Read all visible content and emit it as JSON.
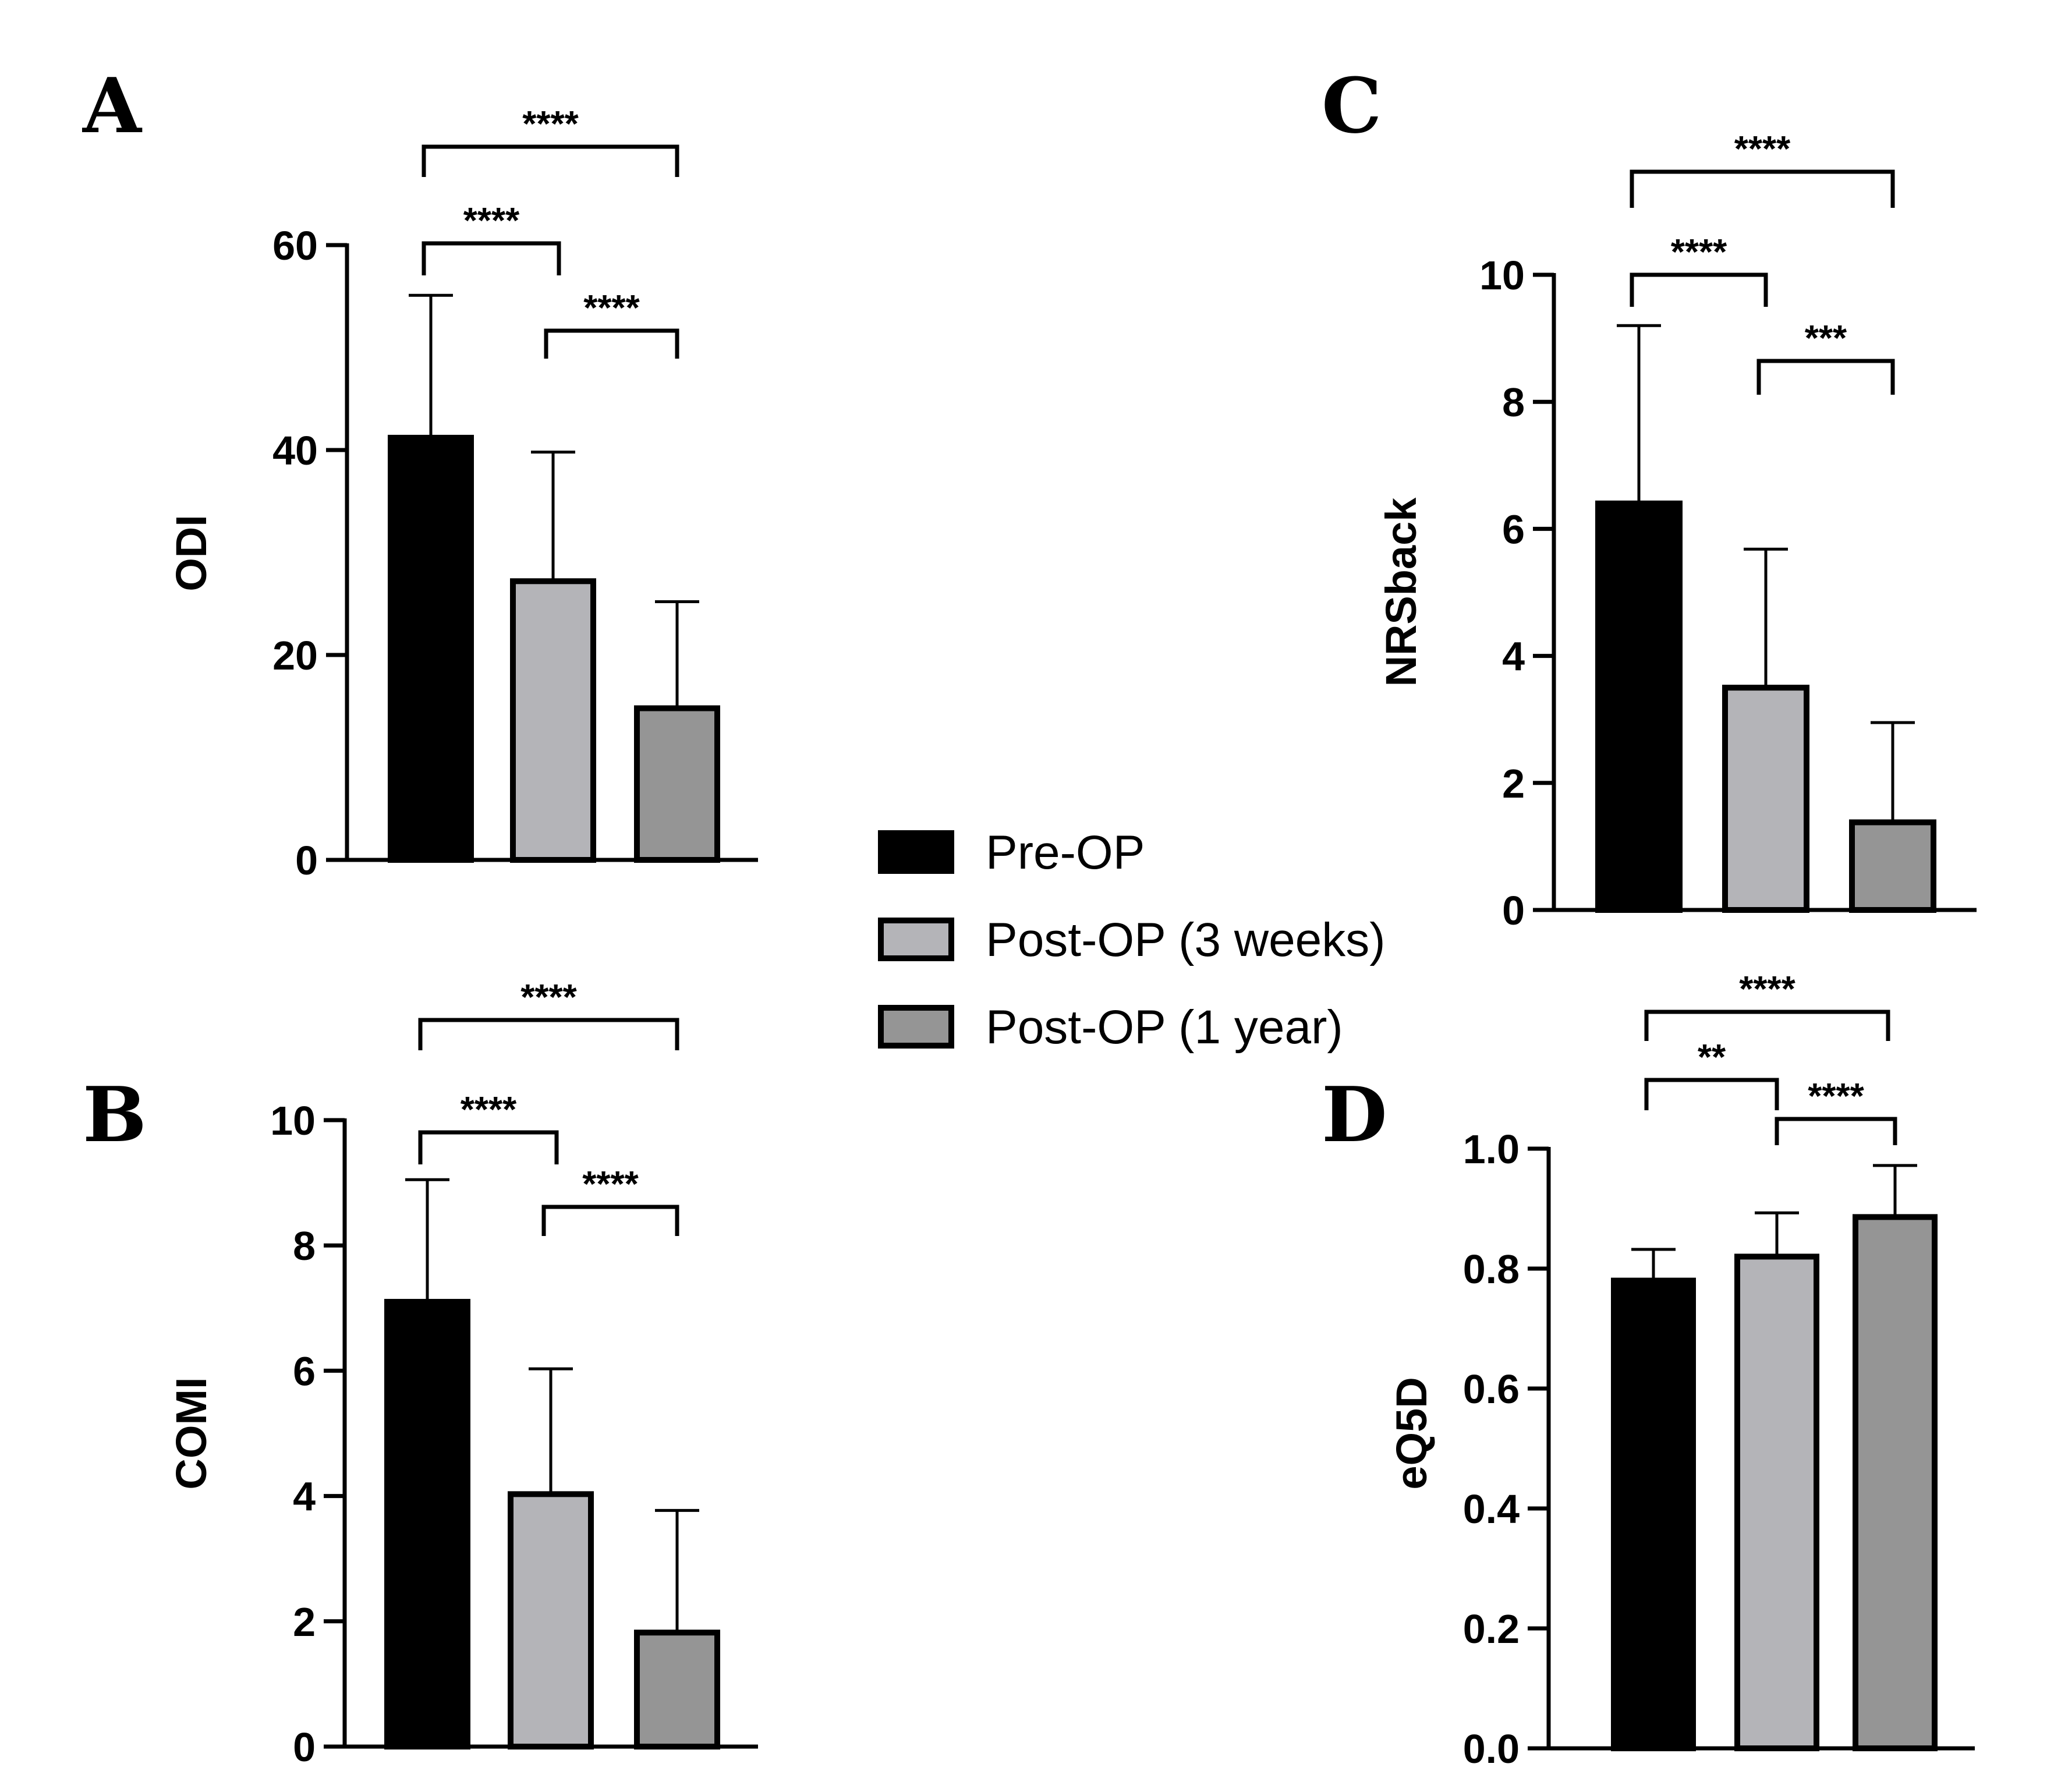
{
  "colors": {
    "pre": "#000000",
    "post3w": "#b4b4b8",
    "post1y": "#959595"
  },
  "legend": [
    {
      "label": "Pre-OP",
      "color": "#000000"
    },
    {
      "label": "Post-OP (3 weeks)",
      "color": "#b4b4b8"
    },
    {
      "label": "Post-OP (1 year)",
      "color": "#959595"
    }
  ],
  "chart_data": [
    {
      "panel": "A",
      "type": "bar",
      "ylabel": "ODI",
      "ylim": [
        0,
        60
      ],
      "yticks": [
        0,
        20,
        40,
        60
      ],
      "yticklabels": [
        "0",
        "20",
        "40",
        "60"
      ],
      "categories": [
        "Pre-OP",
        "Post-OP (3 weeks)",
        "Post-OP (1 year)"
      ],
      "values": [
        41.2,
        27.2,
        14.8
      ],
      "errors": [
        13.9,
        12.6,
        10.4
      ],
      "significance": [
        {
          "from": 0,
          "to": 2,
          "label": "****"
        },
        {
          "from": 0,
          "to": 1,
          "label": "****"
        },
        {
          "from": 1,
          "to": 2,
          "label": "****"
        }
      ]
    },
    {
      "panel": "B",
      "type": "bar",
      "ylabel": "COMI",
      "ylim": [
        0,
        10
      ],
      "yticks": [
        0,
        2,
        4,
        6,
        8,
        10
      ],
      "yticklabels": [
        "0",
        "2",
        "4",
        "6",
        "8",
        "10"
      ],
      "categories": [
        "Pre-OP",
        "Post-OP (3 weeks)",
        "Post-OP (1 year)"
      ],
      "values": [
        7.1,
        4.03,
        1.82
      ],
      "errors": [
        1.95,
        2.0,
        1.95
      ],
      "significance": [
        {
          "from": 0,
          "to": 2,
          "label": "****"
        },
        {
          "from": 0,
          "to": 1,
          "label": "****"
        },
        {
          "from": 1,
          "to": 2,
          "label": "****"
        }
      ]
    },
    {
      "panel": "C",
      "type": "bar",
      "ylabel": "NRSback",
      "ylim": [
        0,
        10
      ],
      "yticks": [
        0,
        2,
        4,
        6,
        8,
        10
      ],
      "yticklabels": [
        "0",
        "2",
        "4",
        "6",
        "8",
        "10"
      ],
      "categories": [
        "Pre-OP",
        "Post-OP (3 weeks)",
        "Post-OP (1 year)"
      ],
      "values": [
        6.4,
        3.5,
        1.38
      ],
      "errors": [
        2.8,
        2.18,
        1.57
      ],
      "significance": [
        {
          "from": 0,
          "to": 2,
          "label": "****"
        },
        {
          "from": 0,
          "to": 1,
          "label": "****"
        },
        {
          "from": 1,
          "to": 2,
          "label": "***"
        }
      ]
    },
    {
      "panel": "D",
      "type": "bar",
      "ylabel": "eQ5D",
      "ylim": [
        0,
        1.0
      ],
      "yticks": [
        0,
        0.2,
        0.4,
        0.6,
        0.8,
        1.0
      ],
      "yticklabels": [
        "0.0",
        "0.2",
        "0.4",
        "0.6",
        "0.8",
        "1.0"
      ],
      "categories": [
        "Pre-OP",
        "Post-OP (3 weeks)",
        "Post-OP (1 year)"
      ],
      "values": [
        0.78,
        0.82,
        0.886
      ],
      "errors": [
        0.052,
        0.073,
        0.086
      ],
      "significance": [
        {
          "from": 0,
          "to": 2,
          "label": "****"
        },
        {
          "from": 0,
          "to": 1,
          "label": "**"
        },
        {
          "from": 1,
          "to": 2,
          "label": "****"
        }
      ]
    }
  ]
}
